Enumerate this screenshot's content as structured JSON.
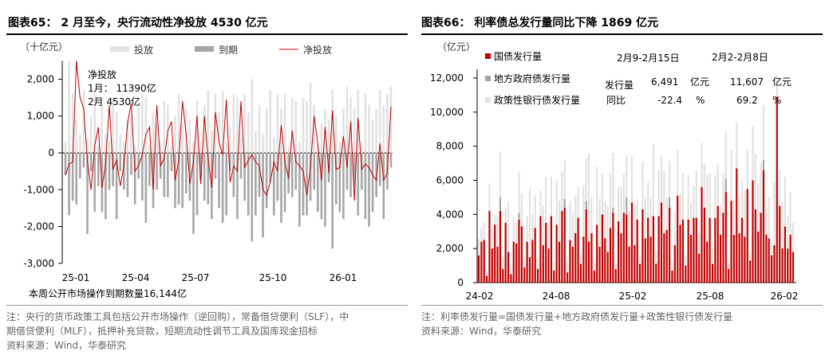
{
  "left": {
    "title": "图表65：  2 月至今，央行流动性净投放 4530 亿元",
    "unit": "（十亿元）",
    "legend": {
      "invest": "投放",
      "expire": "到期",
      "net": "净投放"
    },
    "annotation": {
      "header": "净投放",
      "row1": "1月：    11390亿",
      "row2": "2月       4530亿"
    },
    "footnote": "本周公开市场操作到期数量16,144亿",
    "notes": [
      "注：央行的货币政策工具包括公开市场操作（逆回购），常备借贷便利（SLF），中",
      "期借贷便利（MLF），抵押补充贷款，短期流动性调节工具及国库现金招标",
      "资料来源：Wind，华泰研究"
    ],
    "colors": {
      "invest": "#e2e2e2",
      "expire": "#a6a6a6",
      "net": "#c00000"
    }
  },
  "right": {
    "title": "图表66：  利率债总发行量同比下降 1869 亿元",
    "unit": "（亿元）",
    "legend": {
      "national": "国债发行量",
      "local": "地方政府债发行量",
      "policy": "政策性银行债发行量"
    },
    "table": {
      "col1": "2月9-2月15日",
      "col2": "2月2-2月8日",
      "row1_label": "发行量",
      "row1_v1": "6,491",
      "row1_u1": "亿元",
      "row1_v2": "11,607",
      "row1_u2": "亿元",
      "row2_label": "同比",
      "row2_v1": "-22.4",
      "row2_u1": "%",
      "row2_v2": "69.2",
      "row2_u2": "%"
    },
    "notes": [
      "注：利率债发行量=国债发行量+地方政府债发行量+政策性银行债发行量",
      "资料来源：Wind，华泰研究"
    ],
    "colors": {
      "national": "#c00000",
      "local": "#a6a6a6",
      "policy": "#e2e2e2"
    }
  },
  "chart_data": [
    {
      "type": "bar",
      "x_ticks": [
        "25-01",
        "25-04",
        "25-07",
        "25-10",
        "26-01"
      ],
      "y_ticks": [
        "2,000",
        "1,000",
        "0",
        "-1,000",
        "-2,000",
        "-3,000"
      ],
      "ylim": [
        -3000,
        2500
      ],
      "series": [
        {
          "name": "投放",
          "type": "bar",
          "values": [
            300,
            2500,
            1600,
            900,
            500,
            1700,
            400,
            1000,
            1600,
            200,
            1300,
            500,
            300,
            1500,
            1100,
            500,
            300,
            900,
            1000,
            200,
            1300,
            1600,
            1500,
            200,
            1100,
            800,
            300,
            1400,
            1300,
            200,
            1000,
            1600,
            800,
            1200,
            900,
            300,
            1400,
            300,
            1300,
            1700,
            600,
            1600,
            1100,
            1700,
            300,
            700,
            1600,
            1500,
            400,
            1600,
            1100,
            2000,
            600,
            1300,
            500,
            1200,
            1700,
            400,
            1600,
            1200,
            1600,
            200,
            1500,
            1400,
            300,
            1500,
            1400,
            1900,
            1300,
            200,
            800,
            1200,
            900,
            1700,
            1000,
            300,
            1200,
            1800,
            1500,
            1200,
            1700,
            300,
            1600,
            1300,
            900,
            1200,
            1700,
            1300,
            1600,
            1800
          ]
        },
        {
          "name": "到期",
          "type": "bar",
          "values": [
            -600,
            -1700,
            -1300,
            -1400,
            -700,
            -400,
            -2200,
            -500,
            -1600,
            -900,
            -1600,
            -1800,
            -1000,
            -900,
            -1800,
            -500,
            -1000,
            -1200,
            -600,
            -1400,
            -700,
            -1300,
            -1900,
            -900,
            -1500,
            -1000,
            -700,
            -1200,
            -1200,
            -500,
            -1500,
            -1400,
            -1500,
            -1100,
            -1300,
            -2200,
            -1700,
            -700,
            -1300,
            -1400,
            -1800,
            -700,
            -1500,
            -1900,
            -1700,
            -500,
            -1200,
            -1800,
            -700,
            -1300,
            -1700,
            -2400,
            -1700,
            -1200,
            -2300,
            -1500,
            -800,
            -1700,
            -1300,
            -1900,
            -1600,
            -1100,
            -1200,
            -1000,
            -2000,
            -1700,
            -1700,
            -1300,
            -1000,
            -1600,
            -1800,
            -2000,
            -800,
            -2600,
            -1400,
            -1600,
            -1800,
            -1000,
            -1200,
            -900,
            -1700,
            -1000,
            -1800,
            -2000,
            -1600,
            -1200,
            -900,
            -1800,
            -1000,
            -400
          ]
        },
        {
          "name": "净投放",
          "type": "line",
          "values": [
            -600,
            -300,
            -250,
            2500,
            1500,
            1200,
            -200,
            -1000,
            200,
            700,
            -950,
            -300,
            1300,
            -450,
            -200,
            -900,
            -350,
            800,
            1350,
            -500,
            -350,
            -50,
            500,
            700,
            -1000,
            1300,
            -350,
            -150,
            600,
            850,
            -750,
            -200,
            1400,
            500,
            -850,
            -250,
            1000,
            -850,
            1000,
            -150,
            -950,
            1100,
            300,
            -50,
            1450,
            -800,
            -350,
            -500,
            1400,
            -400,
            -200,
            -50,
            -250,
            -350,
            -1000,
            -1150,
            -800,
            -250,
            -500,
            750,
            -250,
            -700,
            600,
            -250,
            -350,
            -500,
            -1150,
            -400,
            1000,
            250,
            -750,
            700,
            -550,
            1150,
            -450,
            -400,
            450,
            -400,
            850,
            -1300,
            950,
            -450,
            -300,
            -400,
            -600,
            -750,
            250,
            -750,
            -550,
            1250
          ]
        }
      ]
    },
    {
      "type": "bar",
      "x_ticks": [
        "24-02",
        "24-08",
        "25-02",
        "25-08",
        "26-02"
      ],
      "y_ticks": [
        "0",
        "2,000",
        "4,000",
        "6,000",
        "8,000",
        "10,000",
        "12,000"
      ],
      "ylim": [
        0,
        12500
      ],
      "stacked": true,
      "series": [
        {
          "name": "国债发行量",
          "type": "bar",
          "values": [
            1600,
            2400,
            2500,
            400,
            4200,
            2000,
            3400,
            2100,
            4200,
            800,
            3500,
            1800,
            500,
            2400,
            2300,
            3700,
            3300,
            900,
            2400,
            1500,
            2500,
            3200,
            800,
            3900,
            2200,
            3500,
            2000,
            3900,
            700,
            3400,
            2400,
            4200,
            4400,
            600,
            2500,
            2100,
            2900,
            3800,
            1100,
            2700,
            4300,
            2400,
            2900,
            700,
            3400,
            2100,
            4000,
            2600,
            1800,
            3200,
            4100,
            800,
            3600,
            2900,
            4100,
            4000,
            2100,
            4700,
            2200,
            3700,
            1100,
            4300,
            2600,
            3800,
            2700,
            3900,
            1100,
            3900,
            4700,
            2900,
            3100,
            4400,
            700,
            2200,
            5100,
            3400,
            3700,
            1000,
            3700,
            2800,
            3800,
            3800,
            1700,
            5600,
            4400,
            2400,
            3800,
            1100,
            3800,
            4500,
            2800,
            4100,
            5300,
            800,
            4800,
            2800,
            6700,
            2900,
            3800,
            2700,
            5500,
            1300,
            6000,
            4300,
            3000,
            4100,
            6600,
            2800,
            2600,
            1600,
            2200,
            10900,
            4500,
            2000,
            3300,
            2000,
            2800,
            1800
          ]
        },
        {
          "name": "地方政府债发行量",
          "type": "bar",
          "values": [
            0,
            0,
            0,
            0,
            0,
            0,
            0,
            0,
            800,
            0,
            0,
            0,
            0,
            0,
            0,
            400,
            0,
            0,
            0,
            0,
            0,
            0,
            0,
            0,
            0,
            0,
            0,
            0,
            0,
            0,
            0,
            0,
            500,
            0,
            0,
            0,
            0,
            0,
            0,
            0,
            500,
            0,
            0,
            0,
            0,
            0,
            0,
            0,
            0,
            0,
            300,
            0,
            0,
            0,
            0,
            1000,
            0,
            0,
            0,
            0,
            0,
            0,
            0,
            0,
            0,
            0,
            0,
            0,
            0,
            0,
            0,
            600,
            0,
            0,
            0,
            0,
            0,
            0,
            0,
            0,
            0,
            0,
            0,
            0,
            0,
            0,
            0,
            0,
            0,
            0,
            0,
            0,
            800,
            0,
            0,
            0,
            0,
            0,
            0,
            0,
            0,
            0,
            0,
            0,
            0,
            0,
            600,
            0,
            0,
            0,
            0,
            0,
            0,
            0,
            0,
            0,
            0,
            0
          ]
        },
        {
          "name": "政策性银行债发行量",
          "type": "bar",
          "values": [
            1000,
            800,
            1000,
            300,
            1600,
            1200,
            600,
            1800,
            2700,
            600,
            900,
            2900,
            500,
            1500,
            1200,
            2400,
            1900,
            500,
            1500,
            4000,
            1500,
            1900,
            700,
            1500,
            2300,
            2700,
            1500,
            2300,
            500,
            2600,
            2400,
            2300,
            2300,
            600,
            2300,
            2000,
            2200,
            1800,
            600,
            3000,
            2500,
            5200,
            2100,
            600,
            3400,
            2800,
            2400,
            2200,
            2700,
            3200,
            3200,
            300,
            2000,
            2700,
            2300,
            2400,
            2100,
            2700,
            2300,
            1200,
            500,
            2800,
            2400,
            2100,
            2300,
            4200,
            800,
            2700,
            2700,
            3700,
            1900,
            2100,
            600,
            2000,
            2700,
            1800,
            2700,
            600,
            2600,
            1900,
            1900,
            2800,
            1200,
            2600,
            2600,
            3900,
            2600,
            900,
            2500,
            2400,
            1800,
            2300,
            2700,
            500,
            3000,
            2100,
            2700,
            2200,
            2200,
            2700,
            2300,
            500,
            3200,
            3300,
            2800,
            2900,
            3200,
            1600,
            2400,
            900,
            3700,
            1300,
            2100,
            2700,
            2900,
            1900,
            2500,
            1700
          ]
        }
      ]
    }
  ]
}
